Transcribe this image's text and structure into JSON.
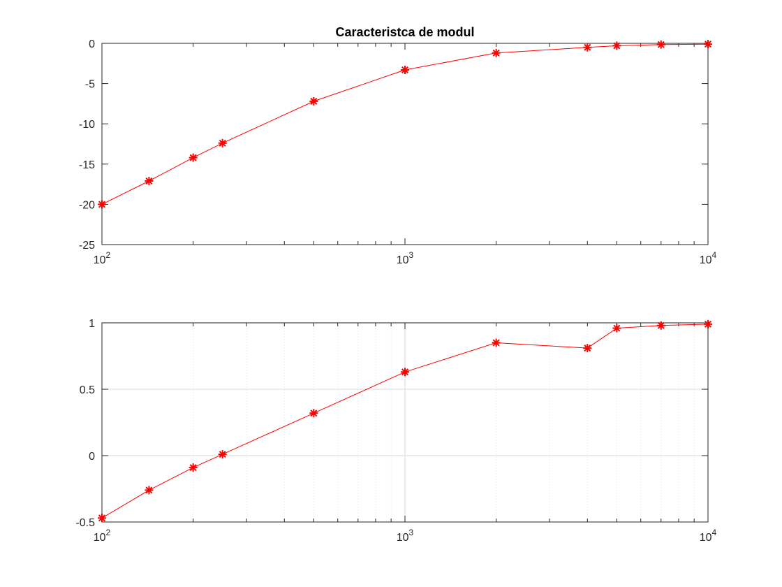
{
  "chart_data": [
    {
      "type": "line",
      "title": "Caracteristca de modul",
      "xlabel": "",
      "ylabel": "",
      "x_scale": "log",
      "xlim": [
        100,
        10000
      ],
      "ylim": [
        -25,
        0
      ],
      "xticks": [
        {
          "value": 100,
          "base": "10",
          "exp": "2"
        },
        {
          "value": 1000,
          "base": "10",
          "exp": "3"
        },
        {
          "value": 10000,
          "base": "10",
          "exp": "4"
        }
      ],
      "yticks": [
        {
          "value": 0,
          "label": "0"
        },
        {
          "value": -5,
          "label": "-5"
        },
        {
          "value": -10,
          "label": "-10"
        },
        {
          "value": -15,
          "label": "-15"
        },
        {
          "value": -20,
          "label": "-20"
        },
        {
          "value": -25,
          "label": "-25"
        }
      ],
      "grid": false,
      "series": [
        {
          "color": "#ff0000",
          "marker": "asterisk",
          "x": [
            100,
            143,
            200,
            250,
            500,
            1000,
            2000,
            4000,
            5000,
            7000,
            10000
          ],
          "y": [
            -20.0,
            -17.1,
            -14.2,
            -12.4,
            -7.2,
            -3.3,
            -1.2,
            -0.5,
            -0.3,
            -0.15,
            -0.1
          ]
        }
      ]
    },
    {
      "type": "line",
      "title": "",
      "xlabel": "",
      "ylabel": "",
      "x_scale": "log",
      "xlim": [
        100,
        10000
      ],
      "ylim": [
        -0.5,
        1
      ],
      "xticks": [
        {
          "value": 100,
          "base": "10",
          "exp": "2"
        },
        {
          "value": 1000,
          "base": "10",
          "exp": "3"
        },
        {
          "value": 10000,
          "base": "10",
          "exp": "4"
        }
      ],
      "yticks": [
        {
          "value": 1,
          "label": "1"
        },
        {
          "value": 0.5,
          "label": "0.5"
        },
        {
          "value": 0,
          "label": "0"
        },
        {
          "value": -0.5,
          "label": "-0.5"
        }
      ],
      "grid": true,
      "series": [
        {
          "color": "#ff0000",
          "marker": "asterisk",
          "x": [
            100,
            143,
            200,
            250,
            500,
            1000,
            2000,
            4000,
            5000,
            7000,
            10000
          ],
          "y": [
            -0.47,
            -0.26,
            -0.09,
            0.01,
            0.32,
            0.63,
            0.85,
            0.81,
            0.96,
            0.98,
            0.99
          ]
        }
      ]
    }
  ]
}
